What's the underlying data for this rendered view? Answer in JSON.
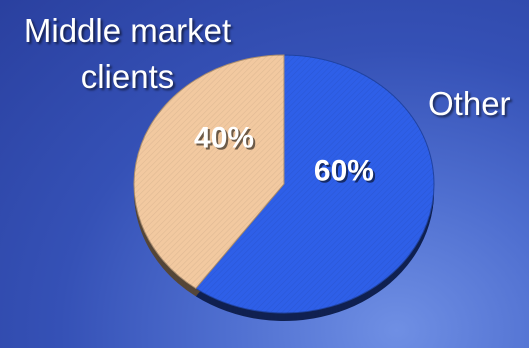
{
  "chart_data": {
    "type": "pie",
    "categories": [
      "Other",
      "Middle market clients"
    ],
    "values": [
      60,
      40
    ],
    "data_labels": [
      "60%",
      "40%"
    ],
    "colors": [
      "#2e5fe8",
      "#f2c9a0"
    ],
    "start_angle_deg": 0,
    "direction": "clockwise"
  },
  "labels": {
    "left_line1": "Middle market",
    "left_line2": "clients",
    "right": "Other"
  }
}
